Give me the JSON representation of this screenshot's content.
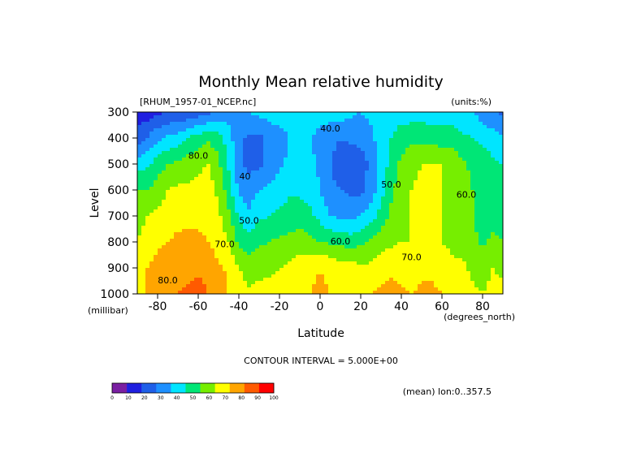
{
  "chart_data": {
    "type": "heatmap",
    "title": "Monthly Mean relative humidity",
    "dataset_label": "[RHUM_1957-01_NCEP.nc]",
    "units_label": "(units:%)",
    "xlabel": "Latitude",
    "x_units": "(degrees_north)",
    "ylabel": "Level",
    "y_units": "(millibar)",
    "xlim": [
      -90,
      90
    ],
    "ylim": [
      1000,
      300
    ],
    "x_ticks": [
      "-80",
      "-60",
      "-40",
      "-20",
      "0",
      "20",
      "40",
      "60",
      "80"
    ],
    "x_tick_values": [
      -80,
      -60,
      -40,
      -20,
      0,
      20,
      40,
      60,
      80
    ],
    "y_ticks": [
      "300",
      "400",
      "500",
      "600",
      "700",
      "800",
      "900",
      "1000"
    ],
    "y_tick_values": [
      300,
      400,
      500,
      600,
      700,
      800,
      900,
      1000
    ],
    "contour_interval_text": "CONTOUR INTERVAL = 5.000E+00",
    "mean_note": "(mean) lon:0..357.5",
    "contour_labels": [
      {
        "text": "40.0",
        "x": 5,
        "y": 375
      },
      {
        "text": "40",
        "x": -37,
        "y": 560
      },
      {
        "text": "80.0",
        "x": -60,
        "y": 480
      },
      {
        "text": "50.0",
        "x": 35,
        "y": 590
      },
      {
        "text": "50.0",
        "x": -35,
        "y": 730
      },
      {
        "text": "60.0",
        "x": 72,
        "y": 630
      },
      {
        "text": "70.0",
        "x": -47,
        "y": 820
      },
      {
        "text": "60.0",
        "x": 10,
        "y": 810
      },
      {
        "text": "70.0",
        "x": 45,
        "y": 870
      },
      {
        "text": "80.0",
        "x": -75,
        "y": 960
      }
    ],
    "colorbar": {
      "ticks": [
        "0",
        "10",
        "20",
        "30",
        "40",
        "50",
        "60",
        "70",
        "80",
        "90",
        "100"
      ],
      "colors": [
        "#7a1fa2",
        "#1f1fe0",
        "#1f5fe8",
        "#1e90ff",
        "#00e5ff",
        "#00e676",
        "#76ee00",
        "#ffff00",
        "#ffa500",
        "#ff5a00",
        "#ff0000"
      ]
    },
    "field": {
      "lats": [
        -90,
        -85,
        -80,
        -75,
        -70,
        -65,
        -60,
        -55,
        -50,
        -45,
        -40,
        -35,
        -30,
        -25,
        -20,
        -15,
        -10,
        -5,
        0,
        5,
        10,
        15,
        20,
        25,
        30,
        35,
        40,
        45,
        50,
        55,
        60,
        65,
        70,
        75,
        80,
        85,
        90
      ],
      "levels": [
        300,
        400,
        500,
        600,
        700,
        800,
        900,
        1000
      ],
      "values": [
        [
          12,
          15,
          18,
          20,
          20,
          22,
          25,
          28,
          32,
          35,
          38,
          40,
          43,
          45,
          45,
          45,
          45,
          45,
          43,
          45,
          45,
          42,
          40,
          42,
          45,
          45,
          45,
          45,
          45,
          45,
          45,
          45,
          43,
          40,
          35,
          30,
          28
        ],
        [
          25,
          30,
          38,
          42,
          45,
          50,
          55,
          58,
          55,
          45,
          32,
          28,
          28,
          32,
          36,
          40,
          42,
          40,
          38,
          33,
          30,
          32,
          33,
          38,
          45,
          50,
          55,
          57,
          57,
          56,
          55,
          54,
          52,
          50,
          48,
          45,
          40
        ],
        [
          45,
          48,
          55,
          60,
          62,
          65,
          68,
          70,
          62,
          48,
          32,
          27,
          28,
          33,
          38,
          42,
          45,
          42,
          38,
          30,
          26,
          24,
          25,
          32,
          42,
          55,
          62,
          68,
          70,
          70,
          70,
          68,
          62,
          58,
          55,
          52,
          50
        ],
        [
          60,
          60,
          65,
          70,
          72,
          72,
          73,
          74,
          68,
          55,
          38,
          35,
          40,
          42,
          45,
          48,
          48,
          46,
          40,
          32,
          30,
          28,
          27,
          35,
          45,
          58,
          65,
          70,
          72,
          70,
          70,
          66,
          63,
          60,
          58,
          56,
          55
        ],
        [
          65,
          70,
          72,
          75,
          77,
          78,
          78,
          77,
          72,
          62,
          48,
          42,
          48,
          50,
          52,
          55,
          55,
          52,
          47,
          40,
          38,
          38,
          40,
          45,
          55,
          62,
          67,
          70,
          72,
          72,
          70,
          66,
          63,
          60,
          58,
          56,
          55
        ],
        [
          70,
          75,
          78,
          80,
          82,
          82,
          82,
          80,
          75,
          70,
          58,
          55,
          58,
          60,
          62,
          63,
          65,
          63,
          60,
          58,
          57,
          55,
          58,
          62,
          66,
          68,
          70,
          70,
          70,
          72,
          70,
          68,
          66,
          62,
          58,
          62,
          60
        ],
        [
          72,
          80,
          84,
          85,
          87,
          87,
          88,
          86,
          82,
          78,
          70,
          65,
          67,
          68,
          70,
          72,
          75,
          78,
          80,
          78,
          75,
          74,
          72,
          72,
          75,
          78,
          76,
          75,
          78,
          78,
          75,
          72,
          72,
          68,
          65,
          70,
          68
        ],
        [
          75,
          82,
          88,
          90,
          90,
          92,
          95,
          90,
          85,
          80,
          75,
          72,
          73,
          74,
          75,
          78,
          80,
          80,
          82,
          80,
          78,
          78,
          78,
          80,
          82,
          84,
          82,
          80,
          82,
          82,
          80,
          78,
          76,
          72,
          70,
          74,
          72
        ]
      ]
    }
  }
}
